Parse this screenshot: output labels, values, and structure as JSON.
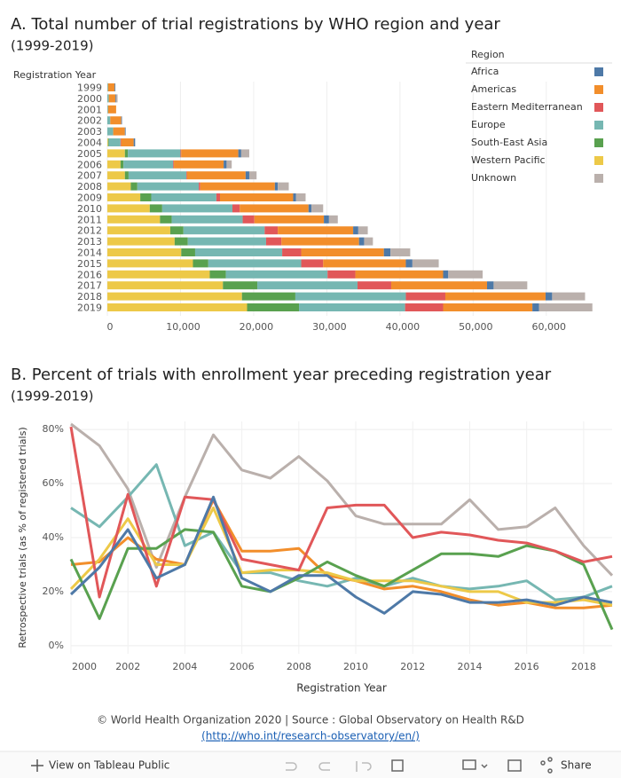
{
  "chart_data": [
    {
      "type": "bar",
      "orientation": "horizontal",
      "stacked": true,
      "title": "A. Total number of trial registrations by WHO region and year",
      "subtitle": "(1999-2019)",
      "y_label": "Registration Year",
      "legend_title": "Region",
      "legend_position": "top-right",
      "categories": [
        "1999",
        "2000",
        "2001",
        "2002",
        "2003",
        "2004",
        "2005",
        "2006",
        "2007",
        "2008",
        "2009",
        "2010",
        "2011",
        "2012",
        "2013",
        "2014",
        "2015",
        "2016",
        "2017",
        "2018",
        "2019"
      ],
      "series": [
        {
          "name": "Africa",
          "color": "#4e79a7",
          "values": [
            100,
            100,
            0,
            100,
            100,
            200,
            400,
            400,
            500,
            400,
            400,
            400,
            700,
            700,
            700,
            900,
            900,
            700,
            900,
            900,
            900
          ]
        },
        {
          "name": "Americas",
          "color": "#f28e2b",
          "values": [
            900,
            900,
            1100,
            1500,
            1600,
            1700,
            7800,
            6800,
            8000,
            10200,
            10000,
            9400,
            9500,
            10300,
            10600,
            11300,
            11300,
            12000,
            13100,
            13700,
            12200
          ]
        },
        {
          "name": "Eastern Mediterranean",
          "color": "#e15759",
          "values": [
            0,
            0,
            0,
            0,
            0,
            100,
            100,
            100,
            100,
            200,
            500,
            1000,
            1600,
            1800,
            2100,
            2600,
            3000,
            3800,
            4600,
            5400,
            5200
          ]
        },
        {
          "name": "Europe",
          "color": "#76b7b2",
          "values": [
            100,
            200,
            100,
            400,
            800,
            1600,
            7200,
            6800,
            7900,
            8400,
            8900,
            9600,
            9700,
            11100,
            10700,
            11900,
            12700,
            13900,
            13700,
            15100,
            14500
          ]
        },
        {
          "name": "South-East Asia",
          "color": "#59a14f",
          "values": [
            0,
            0,
            0,
            0,
            0,
            100,
            400,
            400,
            500,
            900,
            1500,
            1700,
            1600,
            1800,
            1800,
            1900,
            2100,
            2200,
            4700,
            7300,
            7100
          ]
        },
        {
          "name": "Western Pacific",
          "color": "#edc948",
          "values": [
            0,
            0,
            0,
            0,
            0,
            100,
            2400,
            1800,
            2400,
            3200,
            4500,
            5800,
            7200,
            8600,
            9200,
            10100,
            11700,
            14000,
            15800,
            18400,
            19100
          ]
        },
        {
          "name": "Unknown",
          "color": "#bab0ac",
          "values": [
            0,
            200,
            0,
            0,
            0,
            0,
            1100,
            700,
            1000,
            1500,
            1300,
            1600,
            1200,
            1300,
            1200,
            2700,
            3600,
            4700,
            4600,
            4500,
            7300
          ]
        }
      ],
      "xlim": [
        0,
        69000
      ],
      "xticks": [
        0,
        {
          "value": 10000,
          "label": "10,000"
        },
        {
          "value": 20000,
          "label": "20,000"
        },
        {
          "value": 30000,
          "label": "30,000"
        },
        {
          "value": 40000,
          "label": "40,000"
        },
        {
          "value": 50000,
          "label": "50,000"
        },
        {
          "value": 60000,
          "label": "60,000"
        }
      ],
      "grid": true
    },
    {
      "type": "line",
      "title": "B. Percent of trials with enrollment year preceding registration year",
      "subtitle": "(1999-2019)",
      "x_label": "Registration Year",
      "y_label": "Retrospective trials (as % of registered trials)",
      "x": [
        2000,
        2001,
        2002,
        2003,
        2004,
        2005,
        2006,
        2007,
        2008,
        2009,
        2010,
        2011,
        2012,
        2013,
        2014,
        2015,
        2016,
        2017,
        2018,
        2019
      ],
      "series": [
        {
          "color": "#bab0ac",
          "values": [
            82,
            74,
            58,
            29,
            55,
            78,
            65,
            62,
            70,
            61,
            48,
            45,
            45,
            45,
            54,
            43,
            44,
            51,
            37,
            26
          ]
        },
        {
          "color": "#76b7b2",
          "values": [
            51,
            44,
            55,
            67,
            37,
            42,
            27,
            27,
            24,
            22,
            25,
            22,
            25,
            22,
            21,
            22,
            24,
            17,
            18,
            22
          ]
        },
        {
          "color": "#f28e2b",
          "values": [
            30,
            31,
            40,
            32,
            30,
            54,
            35,
            35,
            36,
            26,
            24,
            21,
            22,
            20,
            17,
            15,
            16,
            14,
            14,
            15
          ]
        },
        {
          "color": "#edc948",
          "values": [
            21,
            32,
            47,
            30,
            30,
            51,
            27,
            28,
            28,
            27,
            24,
            24,
            24,
            22,
            20,
            20,
            16,
            16,
            17,
            15
          ]
        },
        {
          "color": "#59a14f",
          "values": [
            32,
            10,
            36,
            36,
            43,
            42,
            22,
            20,
            25,
            31,
            26,
            22,
            28,
            34,
            34,
            33,
            37,
            35,
            30,
            6
          ]
        },
        {
          "color": "#e15759",
          "values": [
            81,
            18,
            56,
            22,
            55,
            54,
            32,
            30,
            28,
            51,
            52,
            52,
            40,
            42,
            41,
            39,
            38,
            35,
            31,
            33
          ]
        },
        {
          "color": "#4e79a7",
          "values": [
            19,
            29,
            43,
            25,
            30,
            55,
            25,
            20,
            26,
            26,
            18,
            12,
            20,
            19,
            16,
            16,
            17,
            15,
            18,
            16
          ]
        }
      ],
      "xlim": [
        2000,
        2019
      ],
      "xticks": [
        2000,
        2002,
        2004,
        2006,
        2008,
        2010,
        2012,
        2014,
        2016,
        2018
      ],
      "ylim": [
        -3,
        83
      ],
      "yticks": [
        {
          "value": 0,
          "label": "0%"
        },
        {
          "value": 20,
          "label": "20%"
        },
        {
          "value": 40,
          "label": "40%"
        },
        {
          "value": 60,
          "label": "60%"
        },
        {
          "value": 80,
          "label": "80%"
        }
      ],
      "grid": true
    }
  ],
  "footer": {
    "line1": "© World Health Organization 2020 | Source : Global Observatory on Health R&D",
    "link": "(http://who.int/research-observatory/en/)"
  },
  "toolbar": {
    "view": "View on Tableau Public",
    "share": "Share"
  }
}
